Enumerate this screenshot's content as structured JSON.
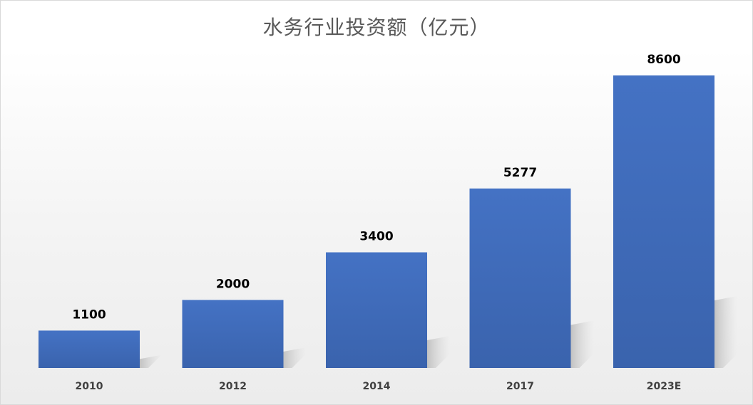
{
  "chart_data": {
    "type": "bar",
    "title": "水务行业投资额（亿元）",
    "categories": [
      "2010",
      "2012",
      "2014",
      "2017",
      "2023E"
    ],
    "values": [
      1100,
      2000,
      3400,
      5277,
      8600
    ],
    "value_labels": [
      "1100",
      "2000",
      "3400",
      "5277",
      "8600"
    ],
    "xlabel": "",
    "ylabel": "",
    "ylim": [
      0,
      9000
    ],
    "grid": false,
    "legend": "none",
    "colors": {
      "bar_top": "#4472c4",
      "bar_bottom": "#2f5597",
      "shadow": "#c8c8c8"
    }
  }
}
